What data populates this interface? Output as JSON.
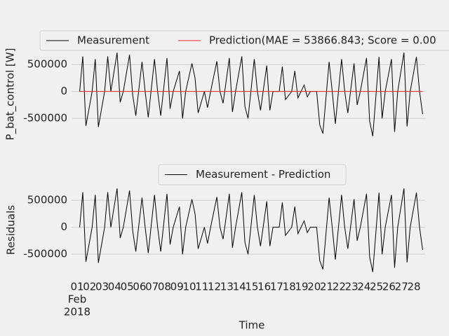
{
  "chart_data": [
    {
      "type": "line",
      "ylabel": "P_bat_control [W]",
      "x": [
        1.2,
        1.45,
        1.7,
        2.2,
        2.45,
        2.7,
        3.2,
        3.45,
        3.7,
        4.2,
        4.45,
        4.7,
        5.2,
        5.45,
        5.7,
        6.2,
        6.45,
        6.7,
        7.2,
        7.45,
        7.7,
        8.2,
        8.45,
        8.7,
        9.2,
        9.45,
        9.7,
        10.2,
        10.45,
        10.7,
        11.2,
        11.45,
        11.7,
        12.2,
        12.45,
        12.7,
        13.2,
        13.45,
        13.7,
        14.2,
        14.45,
        14.7,
        15.2,
        15.45,
        15.7,
        16.2,
        16.45,
        16.7,
        17.2,
        17.45,
        17.7,
        18.2,
        18.45,
        18.7,
        19.2,
        19.45,
        19.7,
        20.2,
        20.45,
        20.7,
        21.2,
        21.45,
        21.7,
        22.2,
        22.45,
        22.7,
        23.2,
        23.45,
        23.7,
        24.2,
        24.45,
        24.7,
        25.2,
        25.45,
        25.7,
        26.2,
        26.45,
        26.7,
        27.2,
        27.45,
        27.7,
        28.2,
        28.45,
        28.7
      ],
      "series": [
        {
          "name": "Measurement",
          "color": "#000000",
          "values": [
            0,
            650000,
            -640000,
            0,
            600000,
            -660000,
            0,
            650000,
            0,
            720000,
            -200000,
            0,
            680000,
            -60000,
            -450000,
            550000,
            0,
            -480000,
            600000,
            0,
            -450000,
            620000,
            -320000,
            0,
            380000,
            -500000,
            0,
            520000,
            250000,
            -400000,
            0,
            -300000,
            0,
            560000,
            0,
            -220000,
            620000,
            -380000,
            0,
            650000,
            -280000,
            -500000,
            600000,
            0,
            -350000,
            480000,
            -350000,
            0,
            0,
            460000,
            -150000,
            0,
            380000,
            -120000,
            120000,
            -100000,
            0,
            0,
            -620000,
            -780000,
            550000,
            0,
            -600000,
            600000,
            0,
            -400000,
            520000,
            -250000,
            0,
            620000,
            -550000,
            -830000,
            640000,
            -500000,
            0,
            600000,
            -750000,
            0,
            720000,
            -650000,
            0,
            640000,
            0,
            -420000
          ]
        },
        {
          "name": "Prediction(MAE = 53866.843; Score = 0.00",
          "color": "#e5262b",
          "values": [
            0,
            0,
            0,
            0,
            0,
            0,
            0,
            0,
            0,
            0,
            0,
            0,
            0,
            0,
            0,
            0,
            0,
            0,
            0,
            0,
            0,
            0,
            0,
            0,
            0,
            0,
            0,
            0,
            0,
            0,
            0,
            0,
            0,
            0,
            0,
            0,
            0,
            0,
            0,
            0,
            0,
            0,
            0,
            0,
            0,
            0,
            0,
            0,
            0,
            0,
            0,
            0,
            0,
            0,
            0,
            0,
            0,
            0,
            0,
            0,
            0,
            0,
            0,
            0,
            0,
            0,
            0,
            0,
            0,
            0,
            0,
            0,
            0,
            0,
            0,
            0,
            0,
            0,
            0,
            0,
            0,
            0,
            0,
            0
          ]
        }
      ],
      "xlim": [
        0.55,
        28.9
      ],
      "ylim": [
        -900000,
        800000
      ],
      "yticks": [
        -500000,
        0,
        500000
      ],
      "grid": true
    },
    {
      "type": "line",
      "ylabel": "Residuals",
      "xlabel": "Time",
      "x_offset_label": [
        "Feb",
        "2018"
      ],
      "x": [
        1.2,
        1.45,
        1.7,
        2.2,
        2.45,
        2.7,
        3.2,
        3.45,
        3.7,
        4.2,
        4.45,
        4.7,
        5.2,
        5.45,
        5.7,
        6.2,
        6.45,
        6.7,
        7.2,
        7.45,
        7.7,
        8.2,
        8.45,
        8.7,
        9.2,
        9.45,
        9.7,
        10.2,
        10.45,
        10.7,
        11.2,
        11.45,
        11.7,
        12.2,
        12.45,
        12.7,
        13.2,
        13.45,
        13.7,
        14.2,
        14.45,
        14.7,
        15.2,
        15.45,
        15.7,
        16.2,
        16.45,
        16.7,
        17.2,
        17.45,
        17.7,
        18.2,
        18.45,
        18.7,
        19.2,
        19.45,
        19.7,
        20.2,
        20.45,
        20.7,
        21.2,
        21.45,
        21.7,
        22.2,
        22.45,
        22.7,
        23.2,
        23.45,
        23.7,
        24.2,
        24.45,
        24.7,
        25.2,
        25.45,
        25.7,
        26.2,
        26.45,
        26.7,
        27.2,
        27.45,
        27.7,
        28.2,
        28.45,
        28.7
      ],
      "series": [
        {
          "name": "Measurement - Prediction",
          "color": "#000000",
          "values": [
            0,
            650000,
            -640000,
            0,
            600000,
            -660000,
            0,
            650000,
            0,
            720000,
            -200000,
            0,
            680000,
            -60000,
            -450000,
            550000,
            0,
            -480000,
            600000,
            0,
            -450000,
            620000,
            -320000,
            0,
            380000,
            -500000,
            0,
            520000,
            250000,
            -400000,
            0,
            -300000,
            0,
            560000,
            0,
            -220000,
            620000,
            -380000,
            0,
            650000,
            -280000,
            -500000,
            600000,
            0,
            -350000,
            480000,
            -350000,
            0,
            0,
            460000,
            -150000,
            0,
            380000,
            -120000,
            120000,
            -100000,
            0,
            0,
            -620000,
            -780000,
            550000,
            0,
            -600000,
            600000,
            0,
            -400000,
            520000,
            -250000,
            0,
            620000,
            -550000,
            -830000,
            640000,
            -500000,
            0,
            600000,
            -750000,
            0,
            720000,
            -650000,
            0,
            640000,
            0,
            -420000
          ]
        }
      ],
      "xlim": [
        0.55,
        28.9
      ],
      "ylim": [
        -900000,
        800000
      ],
      "yticks": [
        -500000,
        0,
        500000
      ],
      "xticks": [
        {
          "value": 1,
          "label": "01"
        },
        {
          "value": 2,
          "label": "02"
        },
        {
          "value": 3,
          "label": "03"
        },
        {
          "value": 4,
          "label": "04"
        },
        {
          "value": 5,
          "label": "05"
        },
        {
          "value": 6,
          "label": "06"
        },
        {
          "value": 7,
          "label": "07"
        },
        {
          "value": 8,
          "label": "08"
        },
        {
          "value": 9,
          "label": "09"
        },
        {
          "value": 10,
          "label": "10"
        },
        {
          "value": 11,
          "label": "11"
        },
        {
          "value": 12,
          "label": "12"
        },
        {
          "value": 13,
          "label": "13"
        },
        {
          "value": 14,
          "label": "14"
        },
        {
          "value": 15,
          "label": "15"
        },
        {
          "value": 16,
          "label": "16"
        },
        {
          "value": 17,
          "label": "17"
        },
        {
          "value": 18,
          "label": "18"
        },
        {
          "value": 19,
          "label": "19"
        },
        {
          "value": 20,
          "label": "20"
        },
        {
          "value": 21,
          "label": "21"
        },
        {
          "value": 22,
          "label": "22"
        },
        {
          "value": 23,
          "label": "23"
        },
        {
          "value": 24,
          "label": "24"
        },
        {
          "value": 25,
          "label": "25"
        },
        {
          "value": 26,
          "label": "26"
        },
        {
          "value": 27,
          "label": "27"
        },
        {
          "value": 28,
          "label": "28"
        }
      ],
      "grid": true
    }
  ]
}
